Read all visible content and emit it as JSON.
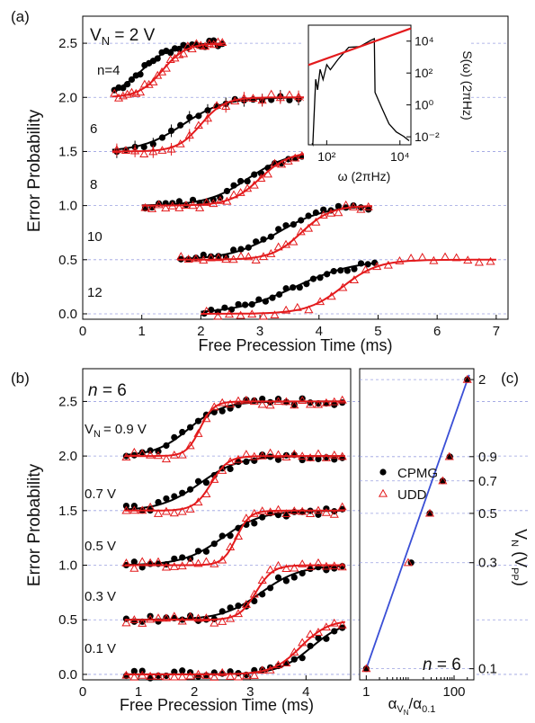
{
  "colors": {
    "cpmg": "#000000",
    "udd": "#e31a1c",
    "fit_line": "#3a4fd6",
    "noise": "#e31a1c",
    "grid": "#9aa0e0"
  },
  "chart_data": [
    {
      "panel": "(a)",
      "type": "scatter",
      "annotation": "V",
      "annotation_sub": "N",
      "annotation_tail": " = 2 V",
      "xlabel": "Free Precession Time (ms)",
      "ylabel": "Error Probability",
      "xlim": [
        0,
        7.2
      ],
      "ylim": [
        -0.05,
        2.75
      ],
      "xticks": [
        0,
        1,
        2,
        3,
        4,
        5,
        6,
        7
      ],
      "yticks": [
        0.0,
        0.5,
        1.0,
        1.5,
        2.0,
        2.5
      ],
      "ytick_labels": [
        "0.0",
        "0.5",
        "1.0",
        "1.5",
        "2.0",
        "2.5"
      ],
      "xtick_labels": [
        "0",
        "1",
        "2",
        "3",
        "4",
        "5",
        "6",
        "7"
      ],
      "grid": "dashed horizontal at offsets",
      "series": [
        {
          "label": "n=4",
          "offset": 2.0,
          "cpmg": {
            "x0": 0.5,
            "x1": 2.4,
            "mid": 1.0,
            "w": 0.25
          },
          "udd": {
            "x0": 0.5,
            "x1": 2.4,
            "mid": 1.35,
            "w": 0.2
          }
        },
        {
          "label": "6",
          "offset": 1.5,
          "cpmg": {
            "x0": 0.5,
            "x1": 4.5,
            "mid": 1.7,
            "w": 0.35
          },
          "udd": {
            "x0": 0.5,
            "x1": 4.5,
            "mid": 2.0,
            "w": 0.2
          }
        },
        {
          "label": "8",
          "offset": 1.0,
          "cpmg": {
            "x0": 1.0,
            "x1": 4.0,
            "mid": 2.8,
            "w": 0.35
          },
          "udd": {
            "x0": 1.0,
            "x1": 4.0,
            "mid": 3.0,
            "w": 0.25
          }
        },
        {
          "label": "10",
          "offset": 0.5,
          "cpmg": {
            "x0": 1.6,
            "x1": 4.9,
            "mid": 3.3,
            "w": 0.4
          },
          "udd": {
            "x0": 1.6,
            "x1": 4.9,
            "mid": 3.7,
            "w": 0.25
          }
        },
        {
          "label": "12",
          "offset": 0.0,
          "cpmg": {
            "x0": 2.0,
            "x1": 5.0,
            "mid": 3.6,
            "w": 0.5
          },
          "udd": {
            "x0": 2.0,
            "x1": 7.0,
            "mid": 4.4,
            "w": 0.3
          }
        }
      ],
      "inset": {
        "xlabel": "ω (2πHz)",
        "ylabel": "S(ω) (2πHz)",
        "xlim_log": [
          1.5,
          4.3
        ],
        "ylim_log": [
          -2.5,
          5.0
        ],
        "xticks": [
          "10²",
          "10⁴"
        ],
        "yticks": [
          "10⁴",
          "10²",
          "10⁰",
          "10⁻²"
        ],
        "ytick_values": [
          4,
          2,
          0,
          -2
        ],
        "xtick_values": [
          2,
          4
        ]
      }
    },
    {
      "panel": "(b)",
      "type": "scatter",
      "annotation": "n",
      "annotation_tail": " = 6",
      "xlabel": "Free Precession Time (ms)",
      "ylabel": "Error Probability",
      "xlim": [
        0,
        4.8
      ],
      "ylim": [
        -0.05,
        2.8
      ],
      "xticks": [
        0,
        1,
        2,
        3,
        4
      ],
      "xtick_labels": [
        "0",
        "1",
        "2",
        "3",
        "4"
      ],
      "yticks": [
        0.0,
        0.5,
        1.0,
        1.5,
        2.0,
        2.5
      ],
      "ytick_labels": [
        "0.0",
        "0.5",
        "1.0",
        "1.5",
        "2.0",
        "2.5"
      ],
      "series": [
        {
          "label": "V",
          "label_sub": "N",
          "label_tail": "= 0.9 V",
          "offset": 2.0,
          "cpmg": {
            "mid": 1.9,
            "w": 0.3
          },
          "udd": {
            "mid": 2.1,
            "w": 0.12
          }
        },
        {
          "label": "0.7 V",
          "offset": 1.5,
          "cpmg": {
            "mid": 2.1,
            "w": 0.35
          },
          "udd": {
            "mid": 2.3,
            "w": 0.15
          }
        },
        {
          "label": "0.5 V",
          "offset": 1.0,
          "cpmg": {
            "mid": 2.5,
            "w": 0.35
          },
          "udd": {
            "mid": 2.75,
            "w": 0.12
          }
        },
        {
          "label": "0.3 V",
          "offset": 0.5,
          "cpmg": {
            "mid": 3.2,
            "w": 0.35
          },
          "udd": {
            "mid": 3.1,
            "w": 0.15
          }
        },
        {
          "label": "0.1 V",
          "offset": 0.0,
          "cpmg": {
            "mid": 4.1,
            "w": 0.3
          },
          "udd": {
            "mid": 3.9,
            "w": 0.25
          }
        }
      ]
    },
    {
      "panel": "(c)",
      "type": "scatter",
      "annotation": "n",
      "annotation_tail": " = 6",
      "xlabel_main": "α",
      "xlabel_sub": "V",
      "xlabel_subsub": "N",
      "xlabel_tail": "/α",
      "xlabel_sub2": "0.1",
      "ylabel": "V",
      "ylabel_sub": "N",
      "ylabel_tail": " (V",
      "ylabel_sub2": "PP",
      "ylabel_end": ")",
      "xlim_log": [
        -0.15,
        2.45
      ],
      "ylim_log": [
        -1.05,
        0.35
      ],
      "xticks": [
        "1",
        "100"
      ],
      "xtick_values": [
        1,
        100
      ],
      "yticks": [
        "2",
        "0.9",
        "0.7",
        "0.5",
        "0.3",
        "0.1"
      ],
      "ytick_values": [
        2,
        0.9,
        0.7,
        0.5,
        0.3,
        0.1
      ],
      "legend": {
        "cpmg": "CPMG",
        "udd": "UDD",
        "placement": "top-right"
      },
      "cpmg_points": [
        [
          1,
          0.1
        ],
        [
          10.5,
          0.3
        ],
        [
          28,
          0.5
        ],
        [
          55,
          0.7
        ],
        [
          80,
          0.9
        ],
        [
          200,
          2
        ]
      ],
      "udd_points": [
        [
          1,
          0.1
        ],
        [
          9,
          0.3
        ],
        [
          28,
          0.5
        ],
        [
          55,
          0.7
        ],
        [
          78,
          0.9
        ],
        [
          200,
          2
        ]
      ],
      "fit_line": [
        [
          1,
          0.1
        ],
        [
          220,
          2.1
        ]
      ]
    }
  ]
}
